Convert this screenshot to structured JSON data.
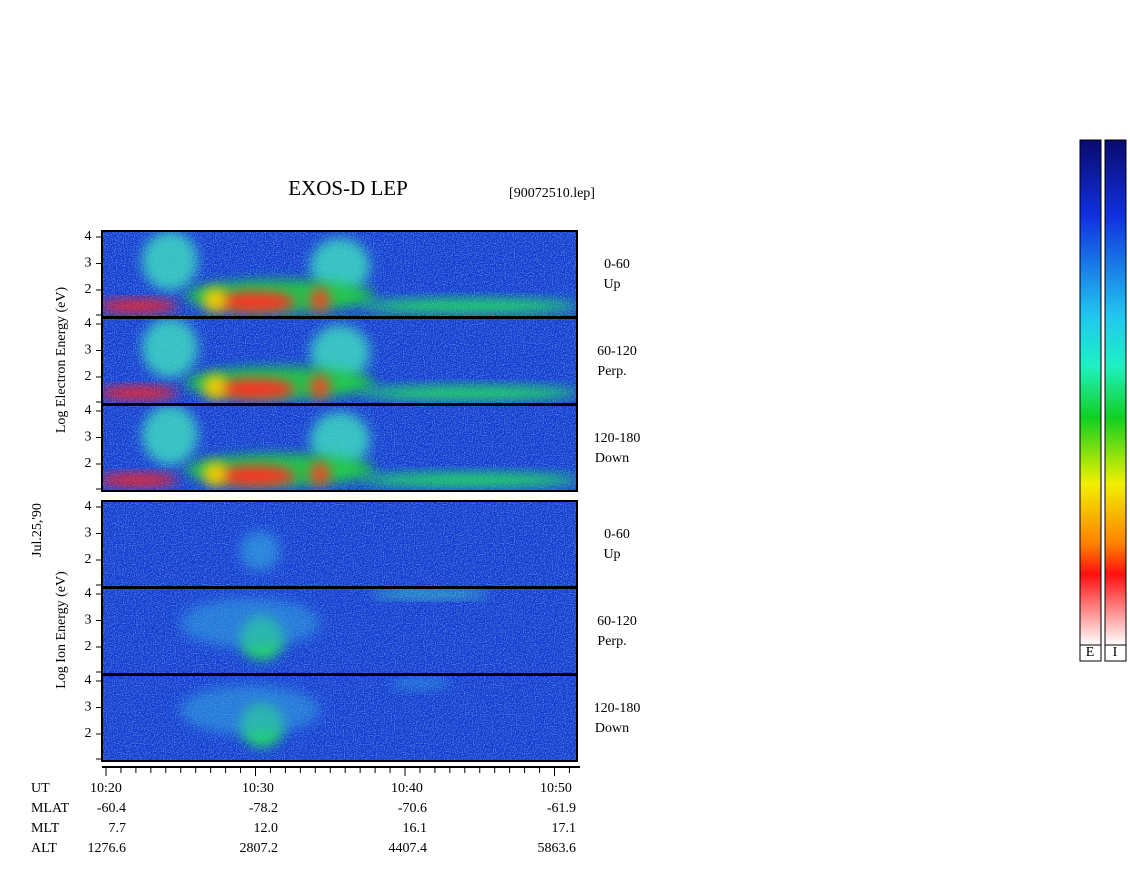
{
  "title": "EXOS-D LEP",
  "file": "[90072510.lep]",
  "date": "Jul.25,'90",
  "electron": {
    "axis_label": "Log Electron Energy (eV)",
    "panels": [
      {
        "angle": "0-60",
        "direction": "Up",
        "yticks": [
          4,
          3,
          2
        ]
      },
      {
        "angle": "60-120",
        "direction": "Perp.",
        "yticks": [
          4,
          3,
          2
        ]
      },
      {
        "angle": "120-180",
        "direction": "Down",
        "yticks": [
          4,
          3,
          2
        ]
      }
    ]
  },
  "ion": {
    "axis_label": "Log Ion Energy (eV)",
    "panels": [
      {
        "angle": "0-60",
        "direction": "Up",
        "yticks": [
          4,
          3,
          2
        ]
      },
      {
        "angle": "60-120",
        "direction": "Perp.",
        "yticks": [
          4,
          3,
          2
        ]
      },
      {
        "angle": "120-180",
        "direction": "Down",
        "yticks": [
          4,
          3,
          2
        ]
      }
    ]
  },
  "time_axis": {
    "rows": [
      {
        "name": "UT",
        "values": [
          "10:20",
          "10:30",
          "10:40",
          "10:50"
        ]
      },
      {
        "name": "MLAT",
        "values": [
          "-60.4",
          "-78.2",
          "-70.6",
          "-61.9"
        ]
      },
      {
        "name": "MLT",
        "values": [
          "7.7",
          "12.0",
          "16.1",
          "17.1"
        ]
      },
      {
        "name": "ALT",
        "values": [
          "1276.6",
          "2807.2",
          "4407.4",
          "5863.6"
        ]
      }
    ]
  },
  "color_bars": [
    "E",
    "I"
  ]
}
